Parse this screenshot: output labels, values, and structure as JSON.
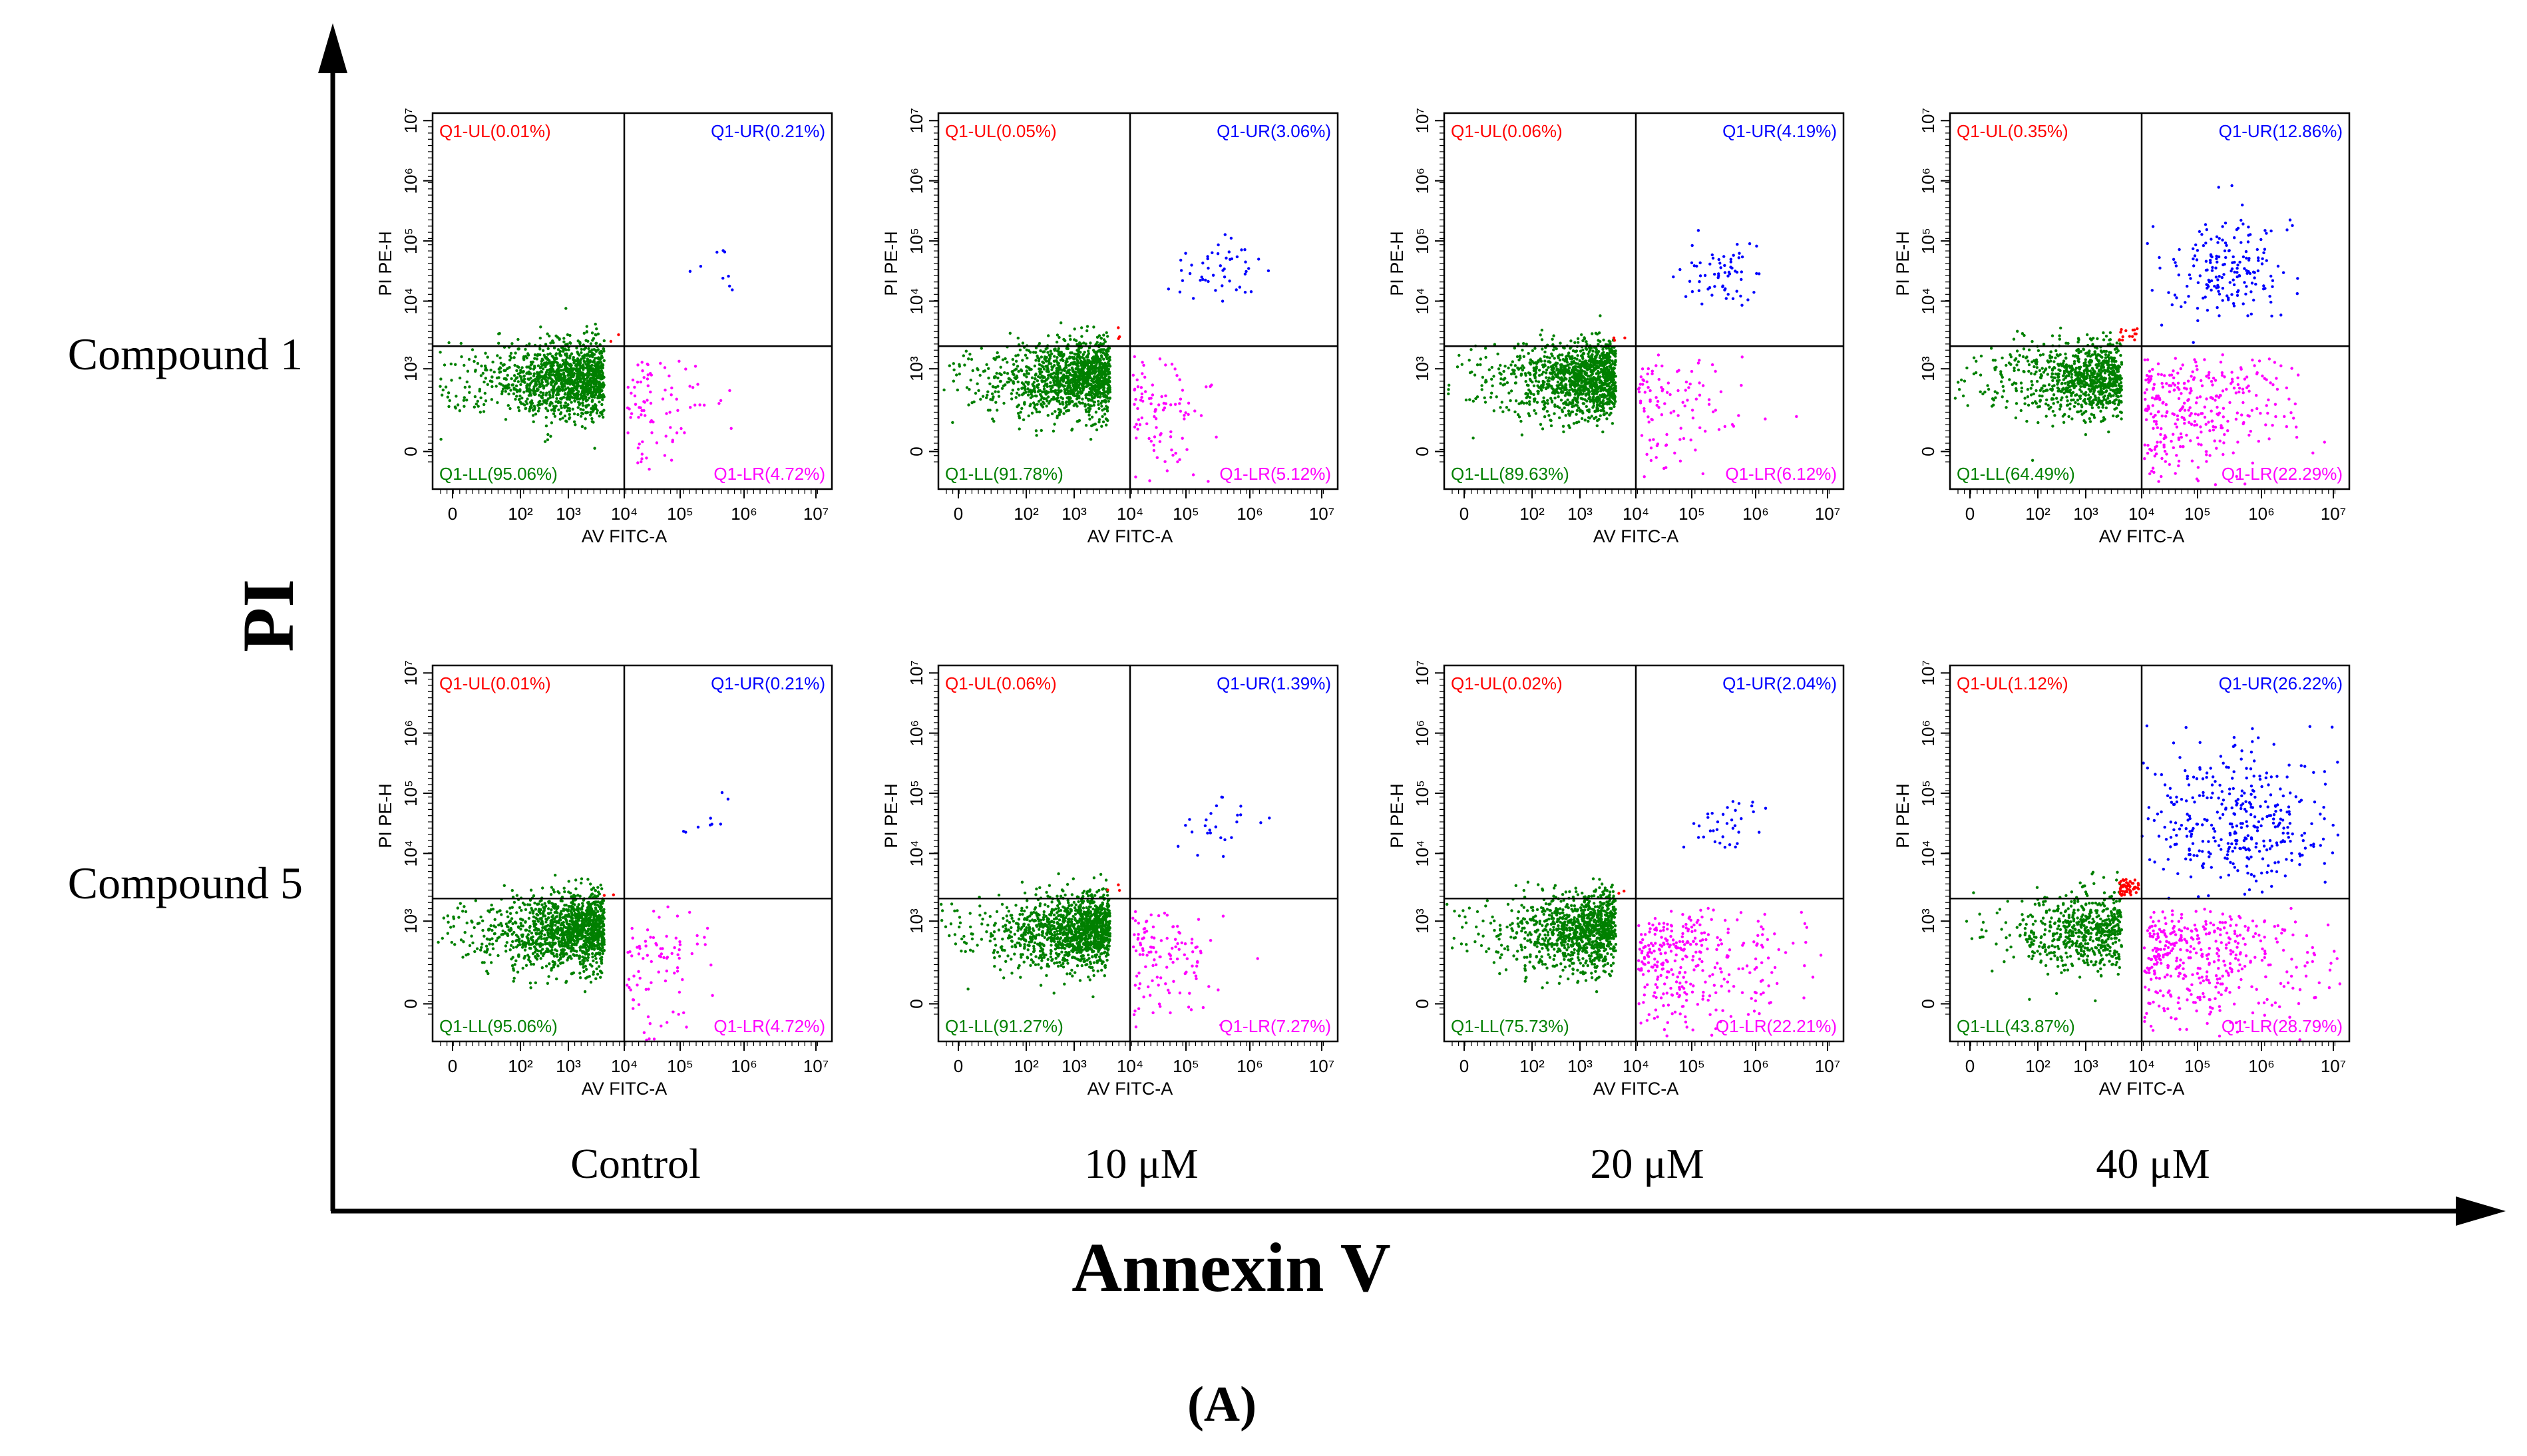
{
  "figure": {
    "x_axis_title": "Annexin V",
    "y_axis_title": "PI",
    "panel_label": "(A)",
    "row_labels": [
      "Compound 1",
      "Compound 5"
    ],
    "column_labels": [
      "Control",
      "10 μM",
      "20 μM",
      "40 μM"
    ]
  },
  "chart_data": {
    "type": "scatter",
    "subtype": "flow-cytometry-quadrant-grid",
    "xlabel": "AV FITC-A",
    "ylabel": "PI PE-H",
    "xscale": "log",
    "yscale": "log",
    "x_ticks": [
      "0",
      "10²",
      "10³",
      "10⁴",
      "10⁵",
      "10⁶",
      "10⁷"
    ],
    "y_ticks": [
      "0",
      "10³",
      "10⁴",
      "10⁵",
      "10⁶",
      "10⁷"
    ],
    "quadrant_colors": {
      "UL": "#ff0000",
      "UR": "#0000ff",
      "LL": "#008000",
      "LR": "#ff00ff"
    },
    "panels": [
      {
        "row": "Compound 1",
        "condition": "Control",
        "UL": "Q1-UL(0.01%)",
        "UR": "Q1-UR(0.21%)",
        "LL": "Q1-LL(95.06%)",
        "LR": "Q1-LR(4.72%)",
        "values": {
          "UL": 0.01,
          "UR": 0.21,
          "LL": 95.06,
          "LR": 4.72
        }
      },
      {
        "row": "Compound 1",
        "condition": "10 μM",
        "UL": "Q1-UL(0.05%)",
        "UR": "Q1-UR(3.06%)",
        "LL": "Q1-LL(91.78%)",
        "LR": "Q1-LR(5.12%)",
        "values": {
          "UL": 0.05,
          "UR": 3.06,
          "LL": 91.78,
          "LR": 5.12
        }
      },
      {
        "row": "Compound 1",
        "condition": "20 μM",
        "UL": "Q1-UL(0.06%)",
        "UR": "Q1-UR(4.19%)",
        "LL": "Q1-LL(89.63%)",
        "LR": "Q1-LR(6.12%)",
        "values": {
          "UL": 0.06,
          "UR": 4.19,
          "LL": 89.63,
          "LR": 6.12
        }
      },
      {
        "row": "Compound 1",
        "condition": "40 μM",
        "UL": "Q1-UL(0.35%)",
        "UR": "Q1-UR(12.86%)",
        "LL": "Q1-LL(64.49%)",
        "LR": "Q1-LR(22.29%)",
        "values": {
          "UL": 0.35,
          "UR": 12.86,
          "LL": 64.49,
          "LR": 22.29
        }
      },
      {
        "row": "Compound 5",
        "condition": "Control",
        "UL": "Q1-UL(0.01%)",
        "UR": "Q1-UR(0.21%)",
        "LL": "Q1-LL(95.06%)",
        "LR": "Q1-LR(4.72%)",
        "values": {
          "UL": 0.01,
          "UR": 0.21,
          "LL": 95.06,
          "LR": 4.72
        }
      },
      {
        "row": "Compound 5",
        "condition": "10 μM",
        "UL": "Q1-UL(0.06%)",
        "UR": "Q1-UR(1.39%)",
        "LL": "Q1-LL(91.27%)",
        "LR": "Q1-LR(7.27%)",
        "values": {
          "UL": 0.06,
          "UR": 1.39,
          "LL": 91.27,
          "LR": 7.27
        }
      },
      {
        "row": "Compound 5",
        "condition": "20 μM",
        "UL": "Q1-UL(0.02%)",
        "UR": "Q1-UR(2.04%)",
        "LL": "Q1-LL(75.73%)",
        "LR": "Q1-LR(22.21%)",
        "values": {
          "UL": 0.02,
          "UR": 2.04,
          "LL": 75.73,
          "LR": 22.21
        }
      },
      {
        "row": "Compound 5",
        "condition": "40 μM",
        "UL": "Q1-UL(1.12%)",
        "UR": "Q1-UR(26.22%)",
        "LL": "Q1-LL(43.87%)",
        "LR": "Q1-LR(28.79%)",
        "values": {
          "UL": 1.12,
          "UR": 26.22,
          "LL": 43.87,
          "LR": 28.79
        }
      }
    ]
  }
}
